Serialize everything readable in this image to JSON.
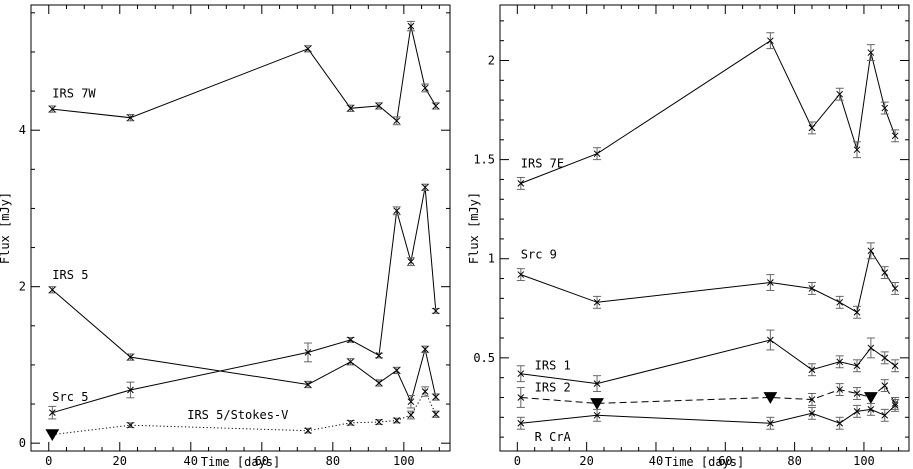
{
  "chart_data": [
    {
      "type": "line",
      "xlabel": "Time [days]",
      "ylabel": "Flux [mJy]",
      "xlim": [
        -5,
        113
      ],
      "ylim": [
        -0.1,
        5.6
      ],
      "xticks": [
        0,
        20,
        40,
        60,
        80,
        100
      ],
      "yticks": [
        0,
        2,
        4
      ],
      "grid": false,
      "series": [
        {
          "name": "IRS 7W",
          "style": "solid",
          "marker": "cross",
          "x": [
            1,
            23,
            73,
            85,
            93,
            98,
            102,
            106,
            109
          ],
          "y": [
            4.27,
            4.16,
            5.04,
            4.28,
            4.31,
            4.12,
            5.33,
            4.54,
            4.31
          ],
          "err": [
            0.04,
            0.04,
            0.04,
            0.04,
            0.04,
            0.05,
            0.06,
            0.05,
            0.04
          ],
          "label_x": 1,
          "label_y": 4.42
        },
        {
          "name": "IRS 5",
          "style": "solid",
          "marker": "cross",
          "x": [
            1,
            23,
            73,
            85,
            93,
            98,
            102,
            106,
            109
          ],
          "y": [
            1.96,
            1.1,
            0.75,
            1.04,
            0.77,
            0.93,
            0.53,
            1.2,
            0.59
          ],
          "err": [
            0.04,
            0.04,
            0.04,
            0.04,
            0.04,
            0.04,
            0.08,
            0.04,
            0.04
          ],
          "label_x": 1,
          "label_y": 2.1
        },
        {
          "name": "Src 5",
          "style": "solid",
          "marker": "cross",
          "x": [
            1,
            23,
            73,
            85,
            93,
            98,
            102,
            106,
            109
          ],
          "y": [
            0.39,
            0.68,
            1.16,
            1.32,
            1.12,
            2.97,
            2.32,
            3.27,
            1.69
          ],
          "err": [
            0.08,
            0.1,
            0.12,
            0.03,
            0.03,
            0.05,
            0.05,
            0.04,
            0.03
          ],
          "label_x": 1,
          "label_y": 0.54
        },
        {
          "name": "IRS 5/Stokes-V",
          "style": "dotted",
          "marker": "cross",
          "x": [
            23,
            73,
            85,
            93,
            98,
            102,
            106,
            109
          ],
          "y": [
            0.23,
            0.16,
            0.26,
            0.27,
            0.29,
            0.36,
            0.66,
            0.37
          ],
          "err": [
            0.03,
            0.03,
            0.03,
            0.03,
            0.03,
            0.05,
            0.06,
            0.04
          ],
          "upper_limits": [
            {
              "x": 1,
              "y": 0.11
            }
          ],
          "label_x": 39,
          "label_y": 0.31
        }
      ]
    },
    {
      "type": "line",
      "xlabel": "Time [days]",
      "ylabel": "Flux [mJy]",
      "xlim": [
        -5,
        113
      ],
      "ylim": [
        0.03,
        2.28
      ],
      "xticks": [
        0,
        20,
        40,
        60,
        80,
        100
      ],
      "yticks": [
        0.5,
        1,
        1.5,
        2
      ],
      "yticklabels": [
        "0.5",
        "1",
        "1.5",
        "2"
      ],
      "grid": false,
      "series": [
        {
          "name": "IRS 7E",
          "style": "solid",
          "marker": "cross",
          "x": [
            1,
            23,
            73,
            85,
            93,
            98,
            102,
            106,
            109
          ],
          "y": [
            1.38,
            1.53,
            2.1,
            1.66,
            1.83,
            1.55,
            2.04,
            1.76,
            1.62
          ],
          "err": [
            0.03,
            0.03,
            0.04,
            0.03,
            0.03,
            0.04,
            0.04,
            0.03,
            0.03
          ],
          "label_x": 1,
          "label_y": 1.46
        },
        {
          "name": "Src 9",
          "style": "solid",
          "marker": "cross",
          "x": [
            1,
            23,
            73,
            85,
            93,
            98,
            102,
            106,
            109
          ],
          "y": [
            0.92,
            0.78,
            0.88,
            0.85,
            0.78,
            0.73,
            1.04,
            0.93,
            0.85
          ],
          "err": [
            0.03,
            0.03,
            0.04,
            0.03,
            0.03,
            0.03,
            0.04,
            0.03,
            0.03
          ],
          "label_x": 1,
          "label_y": 1.0
        },
        {
          "name": "IRS 1",
          "style": "solid",
          "marker": "cross",
          "x": [
            1,
            23,
            73,
            85,
            93,
            98,
            102,
            106,
            109
          ],
          "y": [
            0.42,
            0.37,
            0.59,
            0.44,
            0.48,
            0.46,
            0.55,
            0.5,
            0.46
          ],
          "err": [
            0.04,
            0.04,
            0.05,
            0.03,
            0.03,
            0.03,
            0.05,
            0.03,
            0.03
          ],
          "label_x": 5,
          "label_y": 0.44
        },
        {
          "name": "IRS 2",
          "style": "dashed",
          "marker": "cross",
          "x": [
            1,
            85,
            93,
            98,
            106,
            109
          ],
          "y": [
            0.3,
            0.29,
            0.34,
            0.32,
            0.36,
            0.27
          ],
          "err": [
            0.05,
            0.03,
            0.03,
            0.03,
            0.03,
            0.03
          ],
          "line_x": [
            1,
            23,
            73,
            85,
            93,
            98,
            102,
            106,
            109
          ],
          "line_y": [
            0.3,
            0.27,
            0.3,
            0.29,
            0.34,
            0.32,
            0.3,
            0.36,
            0.27
          ],
          "upper_limits": [
            {
              "x": 23,
              "y": 0.27
            },
            {
              "x": 73,
              "y": 0.3
            },
            {
              "x": 102,
              "y": 0.3
            }
          ],
          "label_x": 5,
          "label_y": 0.33
        },
        {
          "name": "R CrA",
          "style": "solid",
          "marker": "cross",
          "x": [
            1,
            23,
            73,
            85,
            93,
            98,
            102,
            106,
            109
          ],
          "y": [
            0.17,
            0.21,
            0.17,
            0.22,
            0.17,
            0.23,
            0.24,
            0.21,
            0.26
          ],
          "err": [
            0.03,
            0.03,
            0.03,
            0.03,
            0.03,
            0.03,
            0.03,
            0.03,
            0.03
          ],
          "label_x": 5,
          "label_y": 0.08
        }
      ]
    }
  ]
}
